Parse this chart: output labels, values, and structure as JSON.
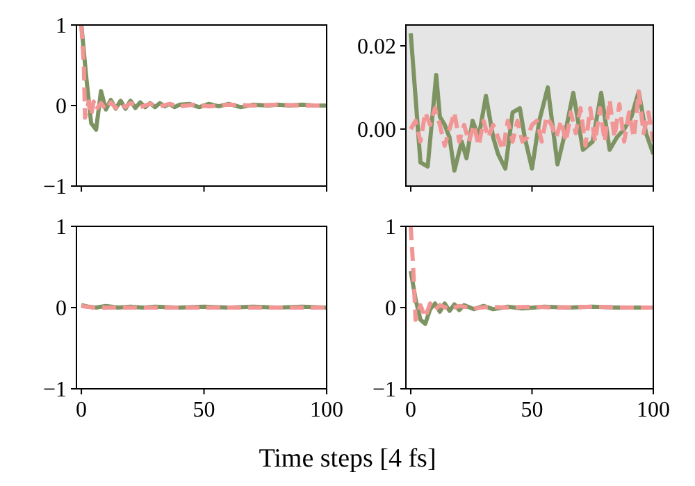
{
  "chart_data": [
    {
      "type": "line",
      "xlim": [
        -2,
        100
      ],
      "ylim": [
        -1,
        1
      ],
      "xticks": [
        0,
        50,
        100
      ],
      "yticks": [
        -1,
        0,
        1
      ],
      "tick_labels": "y",
      "series": [
        {
          "color": "#7d9462",
          "line_style": "solid",
          "x": [
            0,
            2,
            4,
            6,
            8,
            10,
            12,
            14,
            16,
            18,
            20,
            22,
            24,
            26,
            28,
            30,
            32,
            34,
            36,
            38,
            40,
            44,
            48,
            52,
            56,
            60,
            65,
            70,
            76,
            80,
            85,
            90,
            95,
            100
          ],
          "values": [
            1,
            0.35,
            -0.22,
            -0.3,
            0.18,
            -0.05,
            0.07,
            -0.04,
            0.06,
            -0.04,
            0.06,
            -0.03,
            0.04,
            -0.02,
            0.03,
            -0.02,
            0.03,
            -0.01,
            0.02,
            -0.02,
            0.01,
            0.02,
            -0.02,
            0.02,
            -0.01,
            0.02,
            -0.02,
            0.01,
            0,
            0.01,
            0,
            0.01,
            0,
            0
          ]
        },
        {
          "color": "#f29595",
          "line_style": "dashed",
          "x": [
            0,
            1,
            1.5,
            3,
            4,
            5,
            6,
            8,
            10,
            12,
            14,
            16,
            18,
            20,
            24,
            28,
            32,
            36,
            40,
            46,
            52,
            60,
            70,
            80,
            90,
            100
          ],
          "values": [
            1,
            0.5,
            -0.15,
            0.05,
            -0.12,
            0.05,
            -0.05,
            0.03,
            -0.05,
            0.04,
            -0.03,
            0.03,
            -0.02,
            0.03,
            -0.02,
            0.02,
            -0.01,
            0.02,
            -0.01,
            0.01,
            -0.01,
            0.01,
            0,
            0.01,
            0,
            0
          ]
        }
      ]
    },
    {
      "type": "line",
      "xlim": [
        -2,
        100
      ],
      "ylim": [
        -0.0137,
        0.025
      ],
      "xticks": [
        0,
        50,
        100
      ],
      "yticks": [
        {
          "value": 0,
          "label": "0.00"
        },
        {
          "value": 0.02,
          "label": "0.02"
        }
      ],
      "tick_labels": "y",
      "series": [
        {
          "color": "#7d9462",
          "line_style": "solid",
          "x": [
            0,
            4,
            7,
            10.5,
            12,
            14,
            16,
            18,
            21,
            23,
            25.5,
            28,
            31,
            34,
            36,
            39,
            42,
            45,
            47,
            50,
            53,
            56.5,
            60.5,
            64,
            67,
            71,
            75,
            78.5,
            82,
            85,
            88,
            91,
            94,
            97,
            100
          ],
          "values": [
            0.023,
            -0.008,
            -0.009,
            0.013,
            0.003,
            0.001,
            -0.002,
            -0.01,
            -0.003,
            -0.007,
            0.002,
            -0.002,
            0.008,
            -0.002,
            -0.006,
            -0.0095,
            0.004,
            0.005,
            -0.002,
            -0.0095,
            0.002,
            0.01,
            -0.0085,
            0,
            0.0087,
            -0.005,
            -0.003,
            0.0087,
            -0.005,
            -0.002,
            0,
            0.003,
            0.009,
            -0.001,
            -0.006
          ]
        },
        {
          "color": "#f29595",
          "line_style": "dashed",
          "x": [
            0,
            2,
            4,
            6,
            8,
            10,
            12,
            14,
            16,
            18,
            20,
            22,
            24,
            26,
            28,
            30,
            32,
            34,
            36,
            38,
            40,
            42,
            44,
            46,
            48,
            50,
            52,
            54,
            56,
            58,
            60,
            62,
            64,
            66,
            68,
            70,
            72,
            74,
            76,
            78,
            80,
            82,
            84,
            86,
            88,
            90,
            92,
            94,
            96,
            98,
            100
          ],
          "values": [
            0,
            0.002,
            -0.003,
            0.004,
            0.001,
            0.005,
            0.001,
            -0.004,
            0,
            0.004,
            -0.003,
            0.001,
            -0.003,
            0.001,
            -0.004,
            0.002,
            -0.002,
            0.001,
            -0.002,
            -0.005,
            0.002,
            -0.003,
            0.002,
            -0.003,
            -0.002,
            0.001,
            0.002,
            -0.003,
            0.003,
            0.001,
            -0.002,
            0.002,
            -0.003,
            0.004,
            -0.001,
            0.005,
            -0.004,
            0.005,
            -0.003,
            0.005,
            -0.003,
            0.007,
            -0.002,
            0.006,
            -0.003,
            0.004,
            -0.002,
            0.009,
            -0.001,
            0.004,
            -0.003
          ]
        }
      ]
    },
    {
      "type": "line",
      "xlabel": "Time steps [4 fs]",
      "xlim": [
        -2,
        100
      ],
      "ylim": [
        -1,
        1
      ],
      "xticks": [
        0,
        50,
        100
      ],
      "yticks": [
        -1,
        0,
        1
      ],
      "series": [
        {
          "color": "#7d9462",
          "line_style": "solid",
          "x": [
            0,
            3,
            6,
            10,
            15,
            20,
            25,
            30,
            40,
            50,
            60,
            70,
            80,
            90,
            100
          ],
          "values": [
            0.03,
            0.01,
            0,
            0.02,
            0,
            0.01,
            0,
            0.01,
            0,
            0.01,
            0,
            0.01,
            0,
            0.01,
            0
          ]
        },
        {
          "color": "#f29595",
          "line_style": "dashed",
          "x": [
            0,
            5,
            20,
            40,
            60,
            80,
            100
          ],
          "values": [
            0.02,
            0,
            0,
            0,
            0,
            0,
            0
          ]
        }
      ]
    },
    {
      "type": "line",
      "xlim": [
        -2,
        100
      ],
      "ylim": [
        -1,
        1
      ],
      "xticks": [
        0,
        50,
        100
      ],
      "yticks": [
        -1,
        0,
        1
      ],
      "series": [
        {
          "color": "#7d9462",
          "line_style": "solid",
          "x": [
            0,
            2,
            4,
            6,
            8,
            10,
            12,
            14,
            16,
            18,
            20,
            22,
            26,
            30,
            34,
            40,
            46,
            55,
            65,
            75,
            85,
            100
          ],
          "values": [
            0.45,
            0.1,
            -0.15,
            -0.2,
            -0.02,
            0.05,
            -0.05,
            0.05,
            -0.04,
            0.04,
            -0.03,
            0.03,
            -0.02,
            0.02,
            -0.02,
            0.01,
            -0.01,
            0.01,
            0,
            0.01,
            0,
            0
          ]
        },
        {
          "color": "#f29595",
          "line_style": "dashed",
          "x": [
            0,
            1,
            2,
            4,
            6,
            8,
            10,
            12,
            16,
            20,
            26,
            32,
            40,
            50,
            60,
            75,
            90,
            100
          ],
          "values": [
            1,
            0.5,
            -0.15,
            0.03,
            -0.12,
            0.05,
            -0.03,
            0.03,
            -0.02,
            0.02,
            -0.01,
            0.01,
            0,
            0.01,
            0,
            0.01,
            0,
            0
          ]
        }
      ]
    }
  ]
}
